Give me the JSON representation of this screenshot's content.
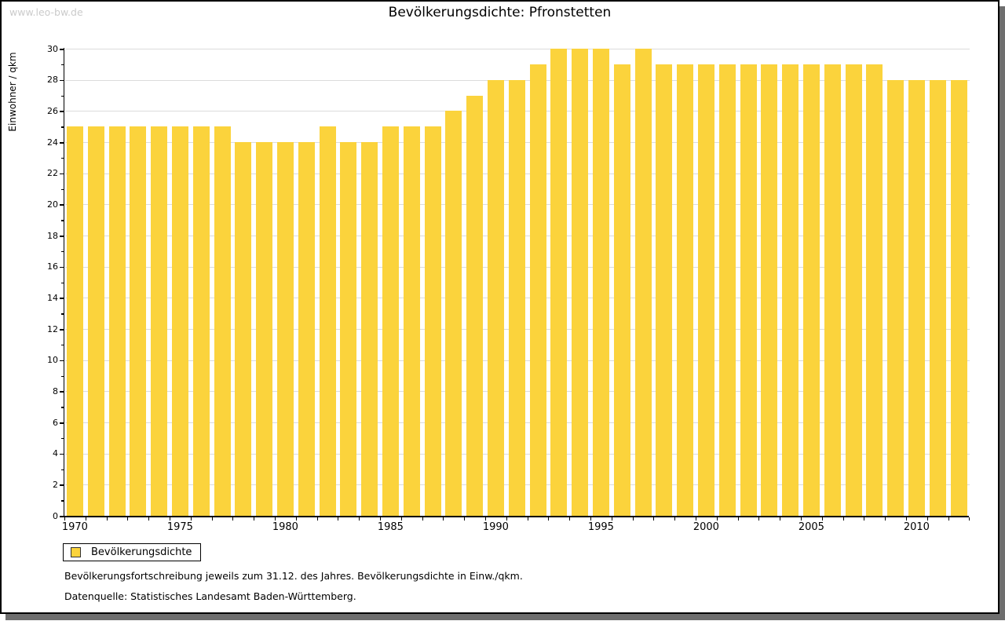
{
  "watermark": "www.leo-bw.de",
  "title": "Bevölkerungsdichte: Pfronstetten",
  "y_axis_label": "Einwohner / qkm",
  "legend": {
    "label": "Bevölkerungsdichte"
  },
  "footnotes": [
    "Bevölkerungsfortschreibung jeweils zum 31.12. des Jahres. Bevölkerungsdichte in Einw./qkm.",
    "Datenquelle: Statistisches Landesamt Baden-Württemberg."
  ],
  "colors": {
    "bar": "#FBD33C",
    "grid": "#DBDBDB",
    "axis": "#000000",
    "watermark": "#CBCBCB",
    "shadow": "#6E6E6E"
  },
  "chart_data": {
    "type": "bar",
    "title": "Bevölkerungsdichte: Pfronstetten",
    "xlabel": "",
    "ylabel": "Einwohner / qkm",
    "ylim": [
      0,
      30
    ],
    "y_tick_step": 2,
    "y_minor_tick_step": 1,
    "grid": true,
    "legend_position": "bottom-left",
    "series_name": "Bevölkerungsdichte",
    "categories": [
      1970,
      1971,
      1972,
      1973,
      1974,
      1975,
      1976,
      1977,
      1978,
      1979,
      1980,
      1981,
      1982,
      1983,
      1984,
      1985,
      1986,
      1987,
      1988,
      1989,
      1990,
      1991,
      1992,
      1993,
      1994,
      1995,
      1996,
      1997,
      1998,
      1999,
      2000,
      2001,
      2002,
      2003,
      2004,
      2005,
      2006,
      2007,
      2008,
      2009,
      2010,
      2011,
      2012
    ],
    "values": [
      25,
      25,
      25,
      25,
      25,
      25,
      25,
      25,
      24,
      24,
      24,
      24,
      25,
      24,
      24,
      25,
      25,
      25,
      26,
      27,
      28,
      28,
      29,
      30,
      30,
      30,
      29,
      30,
      29,
      29,
      29,
      29,
      29,
      29,
      29,
      29,
      29,
      29,
      29,
      28,
      28,
      28,
      28
    ],
    "x_labeled_ticks": [
      1970,
      1975,
      1980,
      1985,
      1990,
      1995,
      2000,
      2005,
      2010
    ]
  }
}
